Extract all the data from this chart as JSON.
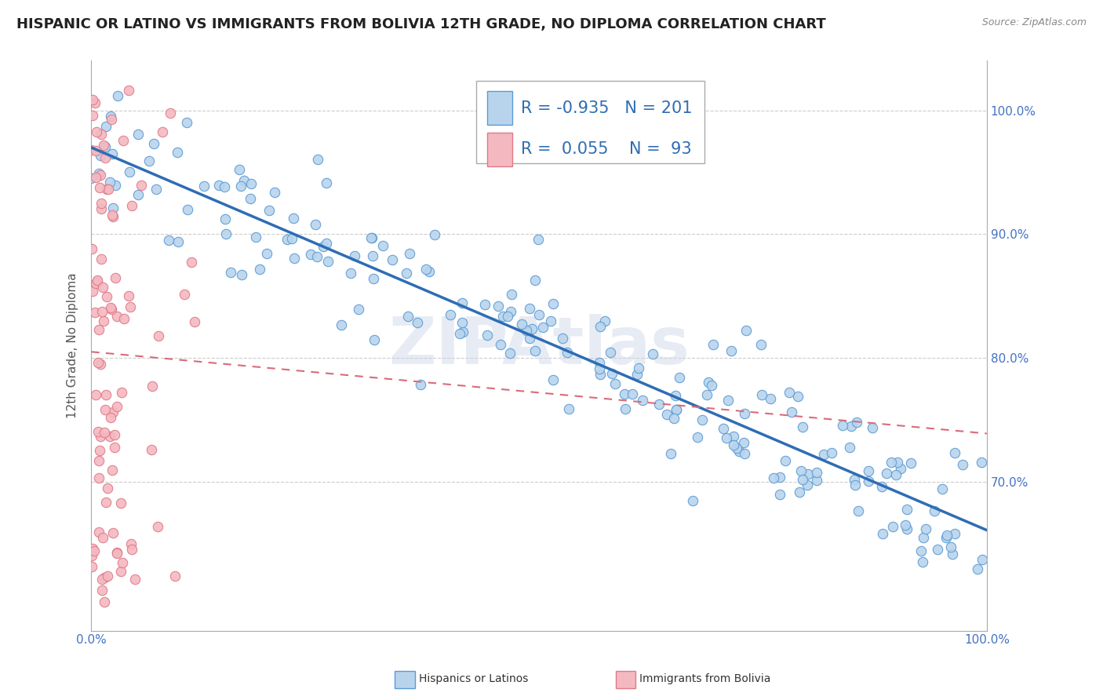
{
  "title": "HISPANIC OR LATINO VS IMMIGRANTS FROM BOLIVIA 12TH GRADE, NO DIPLOMA CORRELATION CHART",
  "source": "Source: ZipAtlas.com",
  "ylabel": "12th Grade, No Diploma",
  "y_ticks_labels": [
    "100.0%",
    "90.0%",
    "80.0%",
    "70.0%"
  ],
  "y_tick_vals": [
    1.0,
    0.9,
    0.8,
    0.7
  ],
  "x_lim": [
    0.0,
    1.0
  ],
  "y_lim": [
    0.58,
    1.04
  ],
  "legend": {
    "R1": "-0.935",
    "N1": "201",
    "R2": "0.055",
    "N2": "93"
  },
  "series1_color": "#b8d4ed",
  "series1_edge": "#5b9bd5",
  "series2_color": "#f4b8c1",
  "series2_edge": "#e07a87",
  "line1_color": "#2e6db4",
  "line2_color": "#d96b7a",
  "background_color": "#ffffff",
  "watermark": "ZIPAtlas",
  "title_fontsize": 13,
  "axis_label_fontsize": 11,
  "tick_fontsize": 11,
  "legend_fontsize": 15,
  "tick_color": "#4472c4"
}
